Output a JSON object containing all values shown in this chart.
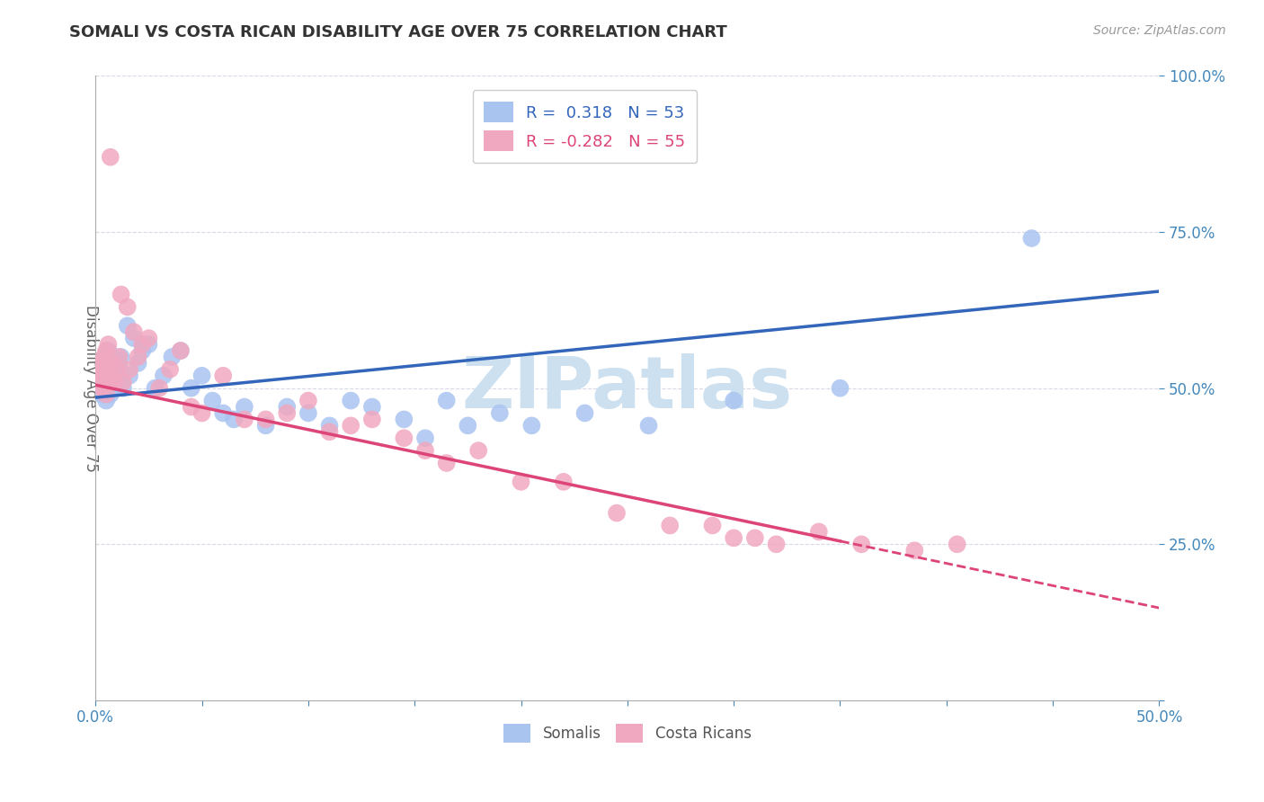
{
  "title": "SOMALI VS COSTA RICAN DISABILITY AGE OVER 75 CORRELATION CHART",
  "source_text": "Source: ZipAtlas.com",
  "ylabel": "Disability Age Over 75",
  "xlim": [
    0.0,
    0.5
  ],
  "ylim": [
    0.0,
    1.0
  ],
  "xticks": [
    0.0,
    0.05,
    0.1,
    0.15,
    0.2,
    0.25,
    0.3,
    0.35,
    0.4,
    0.45,
    0.5
  ],
  "xticklabels": [
    "0.0%",
    "",
    "",
    "",
    "",
    "",
    "",
    "",
    "",
    "",
    "50.0%"
  ],
  "yticks": [
    0.0,
    0.25,
    0.5,
    0.75,
    1.0
  ],
  "yticklabels": [
    "",
    "25.0%",
    "50.0%",
    "75.0%",
    "100.0%"
  ],
  "background_color": "#ffffff",
  "grid_color": "#d8d8e8",
  "somali_color": "#aac4f0",
  "costa_rican_color": "#f0a8c0",
  "somali_R": 0.318,
  "somali_N": 53,
  "costa_rican_R": -0.282,
  "costa_rican_N": 55,
  "trend_somali_color": "#3366bb",
  "trend_costa_rican_color": "#dd4477",
  "watermark_color": "#cce0f0",
  "legend_label_somali": "Somalis",
  "legend_label_costa": "Costa Ricans",
  "somali_x": [
    0.001,
    0.002,
    0.002,
    0.003,
    0.003,
    0.004,
    0.004,
    0.005,
    0.005,
    0.006,
    0.006,
    0.007,
    0.007,
    0.008,
    0.008,
    0.009,
    0.01,
    0.011,
    0.012,
    0.013,
    0.015,
    0.016,
    0.018,
    0.02,
    0.022,
    0.025,
    0.028,
    0.032,
    0.036,
    0.04,
    0.045,
    0.05,
    0.055,
    0.06,
    0.065,
    0.07,
    0.08,
    0.09,
    0.1,
    0.11,
    0.12,
    0.13,
    0.145,
    0.155,
    0.165,
    0.175,
    0.19,
    0.205,
    0.23,
    0.26,
    0.3,
    0.35,
    0.44
  ],
  "somali_y": [
    0.51,
    0.52,
    0.5,
    0.53,
    0.49,
    0.54,
    0.5,
    0.55,
    0.48,
    0.52,
    0.56,
    0.5,
    0.49,
    0.53,
    0.51,
    0.5,
    0.52,
    0.54,
    0.55,
    0.5,
    0.6,
    0.52,
    0.58,
    0.54,
    0.56,
    0.57,
    0.5,
    0.52,
    0.55,
    0.56,
    0.5,
    0.52,
    0.48,
    0.46,
    0.45,
    0.47,
    0.44,
    0.47,
    0.46,
    0.44,
    0.48,
    0.47,
    0.45,
    0.42,
    0.48,
    0.44,
    0.46,
    0.44,
    0.46,
    0.44,
    0.48,
    0.5,
    0.74
  ],
  "costa_rican_x": [
    0.001,
    0.002,
    0.002,
    0.003,
    0.003,
    0.004,
    0.004,
    0.005,
    0.005,
    0.006,
    0.006,
    0.007,
    0.007,
    0.008,
    0.008,
    0.009,
    0.01,
    0.011,
    0.012,
    0.013,
    0.015,
    0.016,
    0.018,
    0.02,
    0.022,
    0.025,
    0.03,
    0.035,
    0.04,
    0.045,
    0.05,
    0.06,
    0.07,
    0.08,
    0.09,
    0.1,
    0.11,
    0.12,
    0.13,
    0.145,
    0.155,
    0.165,
    0.18,
    0.2,
    0.22,
    0.245,
    0.27,
    0.3,
    0.32,
    0.34,
    0.36,
    0.385,
    0.405,
    0.29,
    0.31
  ],
  "costa_rican_y": [
    0.52,
    0.53,
    0.51,
    0.54,
    0.5,
    0.55,
    0.51,
    0.56,
    0.49,
    0.53,
    0.57,
    0.51,
    0.87,
    0.54,
    0.52,
    0.51,
    0.53,
    0.55,
    0.65,
    0.51,
    0.63,
    0.53,
    0.59,
    0.55,
    0.57,
    0.58,
    0.5,
    0.53,
    0.56,
    0.47,
    0.46,
    0.52,
    0.45,
    0.45,
    0.46,
    0.48,
    0.43,
    0.44,
    0.45,
    0.42,
    0.4,
    0.38,
    0.4,
    0.35,
    0.35,
    0.3,
    0.28,
    0.26,
    0.25,
    0.27,
    0.25,
    0.24,
    0.25,
    0.28,
    0.26
  ],
  "trend_somali_x0": 0.0,
  "trend_somali_y0": 0.485,
  "trend_somali_x1": 0.5,
  "trend_somali_y1": 0.655,
  "trend_costa_solid_x0": 0.0,
  "trend_costa_solid_y0": 0.505,
  "trend_costa_solid_x1": 0.35,
  "trend_costa_solid_y1": 0.255,
  "trend_costa_dash_x0": 0.35,
  "trend_costa_dash_y0": 0.255,
  "trend_costa_dash_x1": 0.5,
  "trend_costa_dash_y1": 0.148
}
